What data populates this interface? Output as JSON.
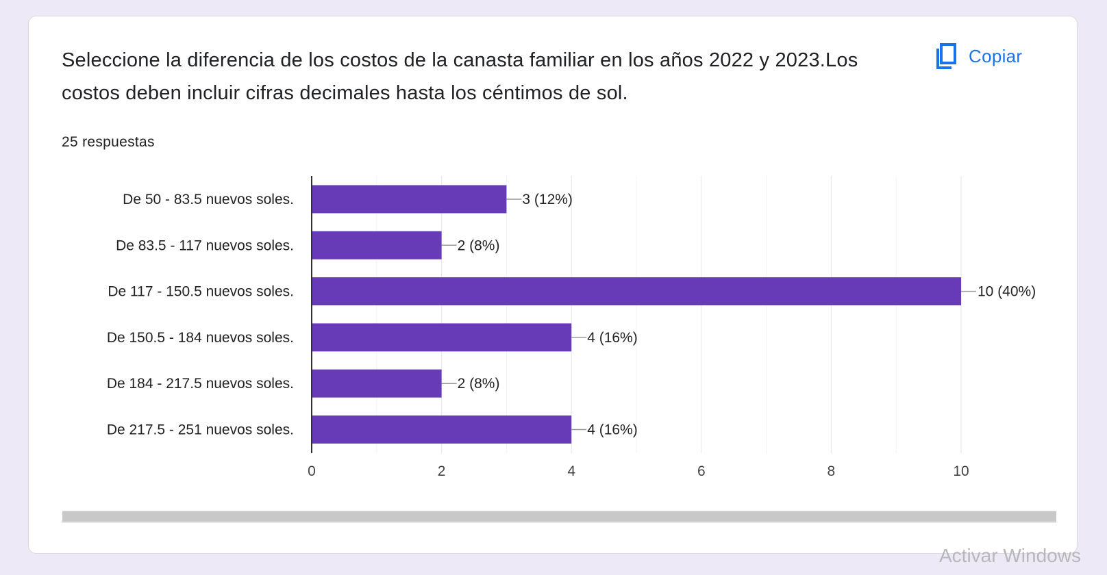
{
  "question": {
    "title": "Seleccione la diferencia de los costos  de la canasta familiar en los años 2022 y 2023.Los costos deben incluir cifras decimales hasta los céntimos de sol.",
    "responses": "25 respuestas"
  },
  "toolbar": {
    "copy_label": "Copiar",
    "copy_icon": "copy-icon"
  },
  "watermark": "Activar Windows",
  "colors": {
    "bar": "#673ab7",
    "accent": "#1a73e8",
    "background": "#ede9f7"
  },
  "chart_data": {
    "type": "bar",
    "orientation": "horizontal",
    "categories": [
      "De 50 - 83.5 nuevos soles.",
      "De 83.5 - 117 nuevos soles.",
      "De 117 - 150.5 nuevos soles.",
      "De 150.5 - 184 nuevos soles.",
      "De 184 - 217.5 nuevos soles.",
      "De 217.5 - 251 nuevos soles."
    ],
    "values": [
      3,
      2,
      10,
      4,
      2,
      4
    ],
    "data_labels": [
      "3 (12%)",
      "2 (8%)",
      "10 (40%)",
      "4 (16%)",
      "2 (8%)",
      "4 (16%)"
    ],
    "xlim": [
      0,
      10
    ],
    "xticks": [
      0,
      2,
      4,
      6,
      8,
      10
    ],
    "grid": true,
    "legend": "none"
  }
}
